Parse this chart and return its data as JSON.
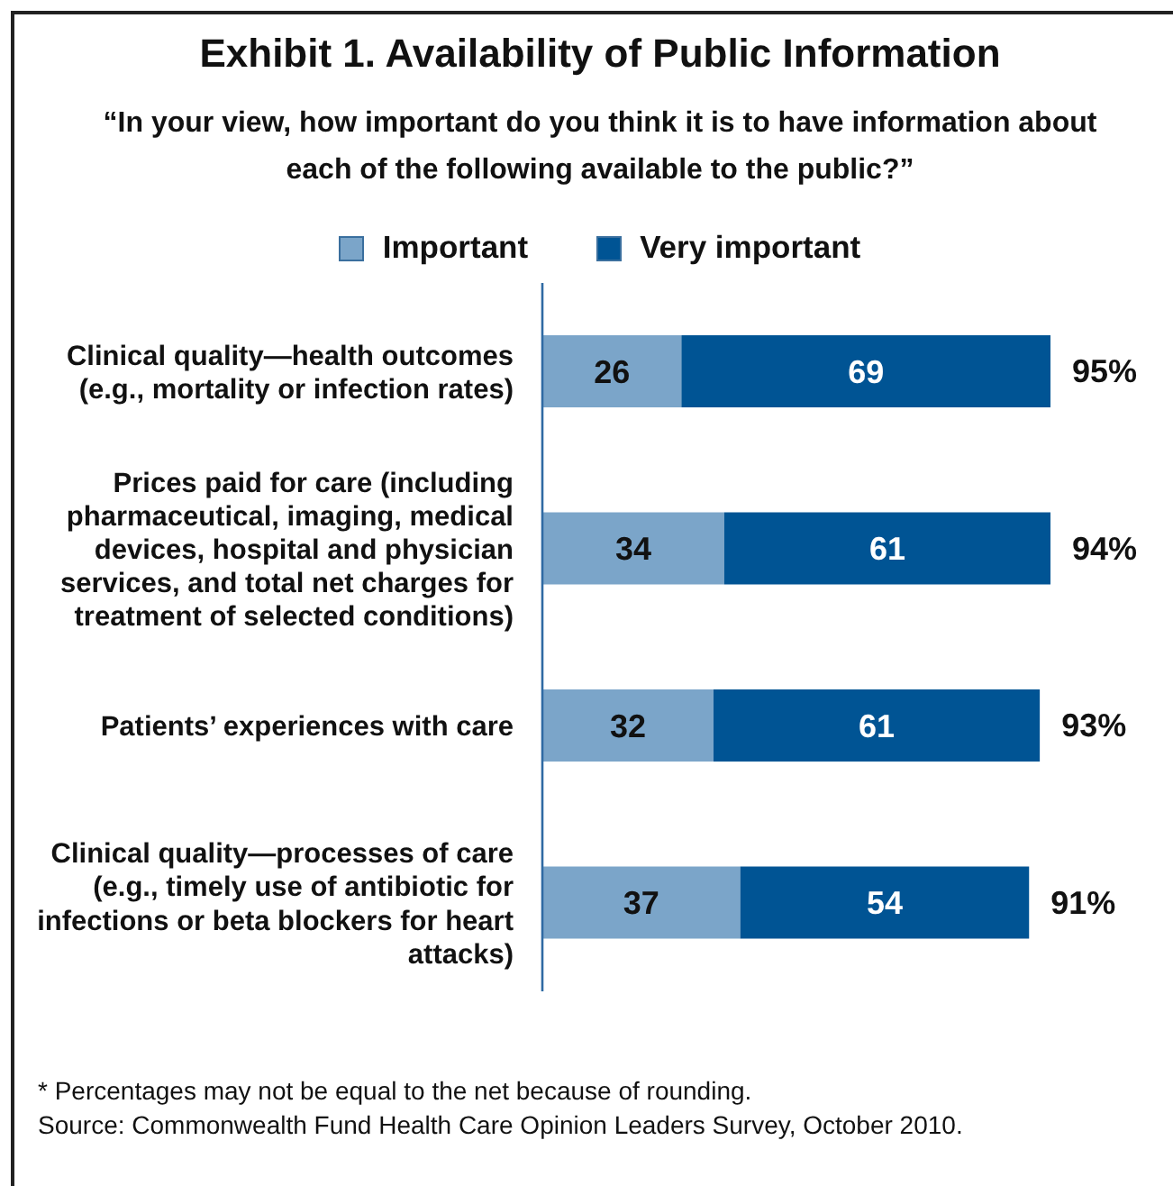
{
  "chart_data": {
    "type": "bar",
    "orientation": "horizontal",
    "stacked": true,
    "title": "Exhibit 1. Availability of Public Information",
    "subtitle": "“In your view, how important do you think it is to have information about each of the following available to the public?”",
    "categories": [
      "Clinical quality—health outcomes (e.g., mortality or infection rates)",
      "Prices paid for care (including pharmaceutical, imaging, medical devices, hospital and physician services, and total net charges for treatment of selected conditions)",
      "Patients’ experiences with care",
      "Clinical quality—processes of care (e.g., timely use of antibiotic for infections or beta blockers for heart attacks)"
    ],
    "series": [
      {
        "name": "Important",
        "color": "#7ba5c9",
        "values": [
          26,
          34,
          32,
          37
        ]
      },
      {
        "name": "Very important",
        "color": "#005494",
        "values": [
          69,
          61,
          61,
          54
        ]
      }
    ],
    "data_labels": true,
    "totals": [
      "95%",
      "94%",
      "93%",
      "91%"
    ],
    "legend": "top",
    "annotations": [
      "* Percentages may not be equal to the net because of rounding.",
      "Source: Commonwealth Fund Health Care Opinion Leaders Survey, October 2010."
    ]
  }
}
